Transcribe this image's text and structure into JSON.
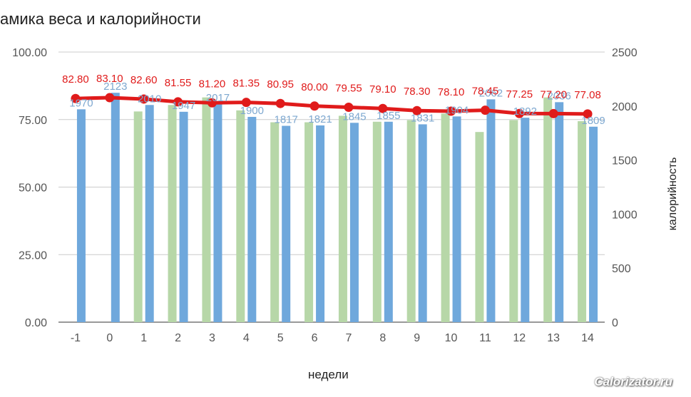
{
  "chart_data": {
    "type": "bar",
    "title": "амика веса и калорийности",
    "xlabel": "недели",
    "ylabel_left": "",
    "ylabel_right": "калорийность",
    "categories": [
      "-1",
      "0",
      "1",
      "2",
      "3",
      "4",
      "5",
      "6",
      "7",
      "8",
      "9",
      "10",
      "11",
      "12",
      "13",
      "14"
    ],
    "y_left_ticks": [
      "100.00",
      "75.00",
      "50.00",
      "25.00",
      "0.00"
    ],
    "y_right_ticks": [
      "2500",
      "2000",
      "1500",
      "1000",
      "500",
      "0"
    ],
    "ylim_left": [
      0,
      100
    ],
    "ylim_right": [
      0,
      2500
    ],
    "grid": true,
    "series": [
      {
        "kind": "bar",
        "axis": "right",
        "color": "#b7d7a8",
        "values": [
          null,
          null,
          1950,
          2010,
          2080,
          1960,
          1850,
          1850,
          1910,
          1855,
          1870,
          1930,
          1760,
          1870,
          2080,
          1860
        ]
      },
      {
        "kind": "bar",
        "axis": "right",
        "color": "#6fa8dc",
        "values": [
          1970,
          2123,
          2010,
          1947,
          2017,
          1900,
          1817,
          1821,
          1845,
          1855,
          1831,
          1904,
          2062,
          1892,
          2036,
          1809
        ],
        "labels": [
          "1970",
          "2123",
          "2010",
          "1947",
          "2017",
          "1900",
          "1817",
          "1821",
          "1845",
          "1855",
          "1831",
          "1904",
          "2062",
          "1892",
          "2036",
          "1809"
        ]
      },
      {
        "kind": "line",
        "axis": "left",
        "color": "#e01b1b",
        "values": [
          82.8,
          83.1,
          82.6,
          81.55,
          81.2,
          81.35,
          80.95,
          80.0,
          79.55,
          79.1,
          78.3,
          78.1,
          78.45,
          77.25,
          77.2,
          77.08
        ],
        "labels": [
          "82.80",
          "83.10",
          "82.60",
          "81.55",
          "81.20",
          "81.35",
          "80.95",
          "80.00",
          "79.55",
          "79.10",
          "78.30",
          "78.10",
          "78.45",
          "77.25",
          "77.20",
          "77.08"
        ]
      }
    ]
  },
  "watermark": "Calorizator.ru"
}
